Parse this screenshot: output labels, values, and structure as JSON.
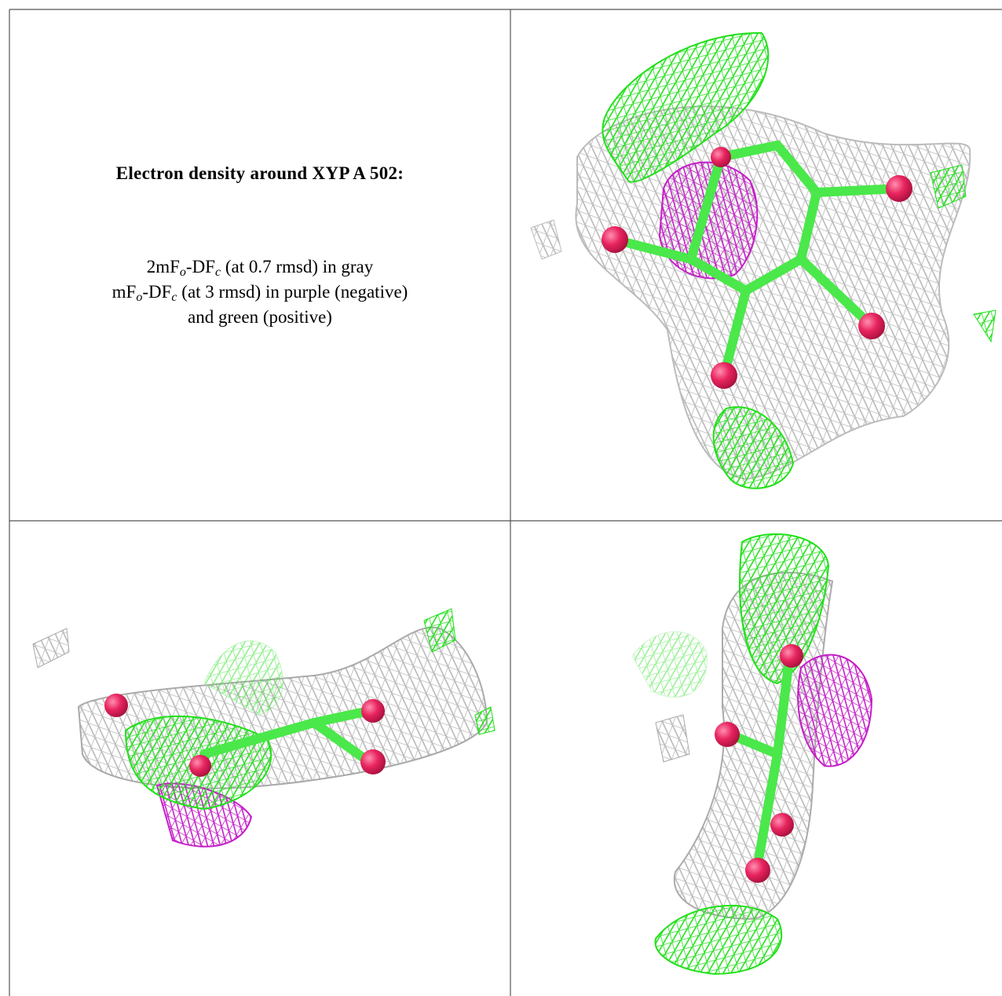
{
  "caption": {
    "title": "Electron density around XYP A 502:",
    "line1": [
      "2mF",
      "o",
      "-DF",
      "c",
      " (at 0.7 rmsd) in gray"
    ],
    "line2": [
      "mF",
      "o",
      "-DF",
      "c",
      " (at 3 rmsd) in purple (negative)"
    ],
    "line3": "and green (positive)"
  }
}
